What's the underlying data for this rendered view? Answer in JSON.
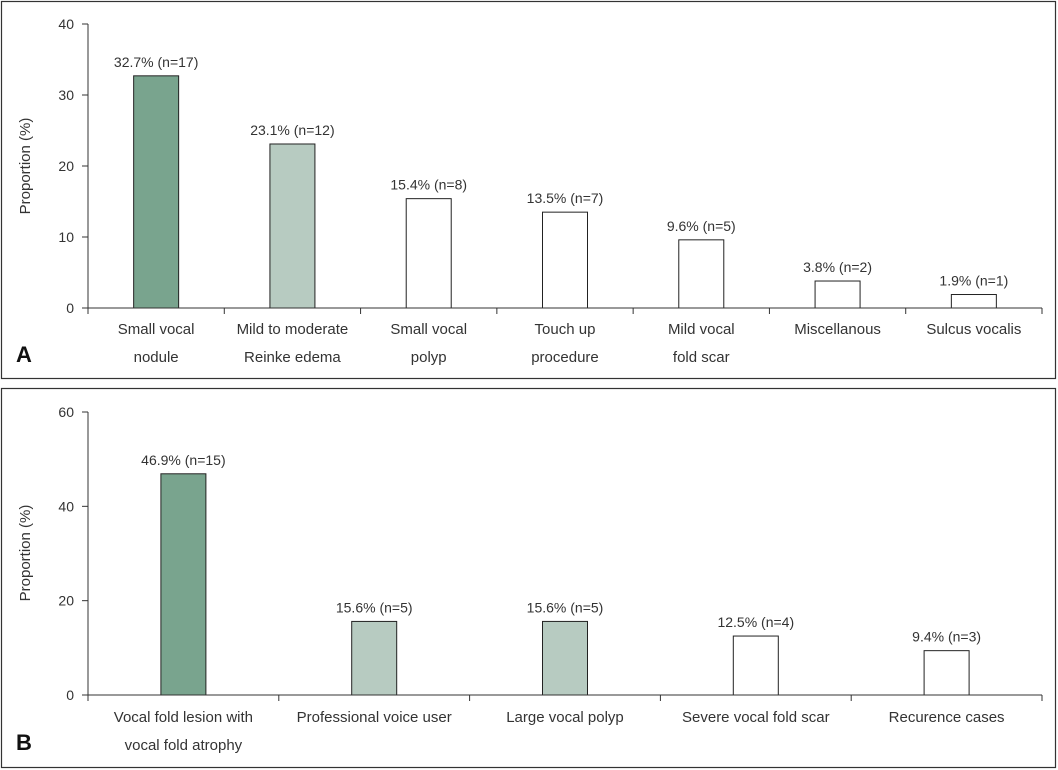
{
  "chart_data": [
    {
      "type": "bar",
      "panel_label": "A",
      "ylabel": "Proportion (%)",
      "ylim": [
        0,
        40
      ],
      "yticks": [
        0,
        10,
        20,
        30,
        40
      ],
      "grid": false,
      "categories": [
        [
          "Small vocal",
          "nodule"
        ],
        [
          "Mild to moderate",
          "Reinke edema"
        ],
        [
          "Small vocal",
          "polyp"
        ],
        [
          "Touch up",
          "procedure"
        ],
        [
          "Mild vocal",
          "fold scar"
        ],
        [
          "Miscellanous"
        ],
        [
          "Sulcus vocalis"
        ]
      ],
      "values": [
        32.7,
        23.1,
        15.4,
        13.5,
        9.6,
        3.8,
        1.9
      ],
      "data_labels": [
        "32.7% (n=17)",
        "23.1% (n=12)",
        "15.4% (n=8)",
        "13.5% (n=7)",
        "9.6% (n=5)",
        "3.8% (n=2)",
        "1.9% (n=1)"
      ],
      "bar_colors": [
        "#79a48e",
        "#b7cbc1",
        "#ffffff",
        "#ffffff",
        "#ffffff",
        "#ffffff",
        "#ffffff"
      ]
    },
    {
      "type": "bar",
      "panel_label": "B",
      "ylabel": "Proportion (%)",
      "ylim": [
        0,
        60
      ],
      "yticks": [
        0,
        20,
        40,
        60
      ],
      "grid": false,
      "categories": [
        [
          "Vocal fold lesion with",
          "vocal fold atrophy"
        ],
        [
          "Professional voice user"
        ],
        [
          "Large vocal polyp"
        ],
        [
          "Severe vocal fold scar"
        ],
        [
          "Recurence cases"
        ]
      ],
      "values": [
        46.9,
        15.6,
        15.6,
        12.5,
        9.4
      ],
      "data_labels": [
        "46.9% (n=15)",
        "15.6% (n=5)",
        "15.6% (n=5)",
        "12.5% (n=4)",
        "9.4% (n=3)"
      ],
      "bar_colors": [
        "#79a48e",
        "#b7cbc1",
        "#b7cbc1",
        "#ffffff",
        "#ffffff"
      ]
    }
  ]
}
